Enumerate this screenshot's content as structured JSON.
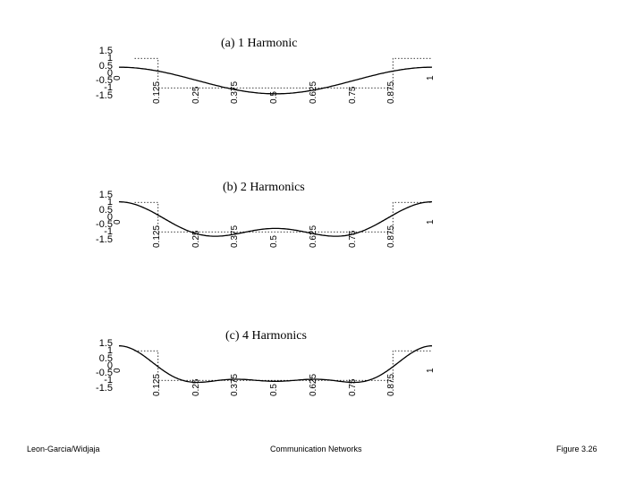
{
  "chart_data": [
    {
      "type": "line",
      "title": "(a) 1 Harmonic",
      "yticks": [
        "1.5",
        "1",
        "0.5",
        "0",
        "-0.5",
        "-1",
        "-1.5"
      ],
      "ylim": [
        -1.5,
        1.5
      ],
      "xlim": [
        0,
        1
      ],
      "xticks": [
        "0",
        "0.125",
        "0.25",
        "0.375",
        "0.5",
        "0.625",
        "0.75",
        "0.875",
        "1"
      ],
      "harmonics": 1,
      "square_wave": {
        "high": 1,
        "low": -1,
        "high_until": 0.125,
        "high_from": 0.875
      }
    },
    {
      "type": "line",
      "title": "(b) 2 Harmonics",
      "yticks": [
        "1.5",
        "1",
        "0.5",
        "0",
        "-0.5",
        "-1",
        "-1.5"
      ],
      "ylim": [
        -1.5,
        1.5
      ],
      "xlim": [
        0,
        1
      ],
      "xticks": [
        "0",
        "0.125",
        "0.25",
        "0.375",
        "0.5",
        "0.625",
        "0.75",
        "0.875",
        "1"
      ],
      "harmonics": 2,
      "square_wave": {
        "high": 1,
        "low": -1,
        "high_until": 0.125,
        "high_from": 0.875
      }
    },
    {
      "type": "line",
      "title": "(c) 4 Harmonics",
      "yticks": [
        "1.5",
        "1",
        "0.5",
        "0",
        "-0.5",
        "-1",
        "-1.5"
      ],
      "ylim": [
        -1.5,
        1.5
      ],
      "xlim": [
        0,
        1
      ],
      "xticks": [
        "0",
        "0.125",
        "0.25",
        "0.375",
        "0.5",
        "0.625",
        "0.75",
        "0.875",
        "1"
      ],
      "harmonics": 4,
      "square_wave": {
        "high": 1,
        "low": -1,
        "high_until": 0.125,
        "high_from": 0.875
      }
    }
  ],
  "footer": {
    "left": "Leon-Garcia/Widjaja",
    "center": "Communication Networks",
    "right": "Figure 3.26"
  }
}
